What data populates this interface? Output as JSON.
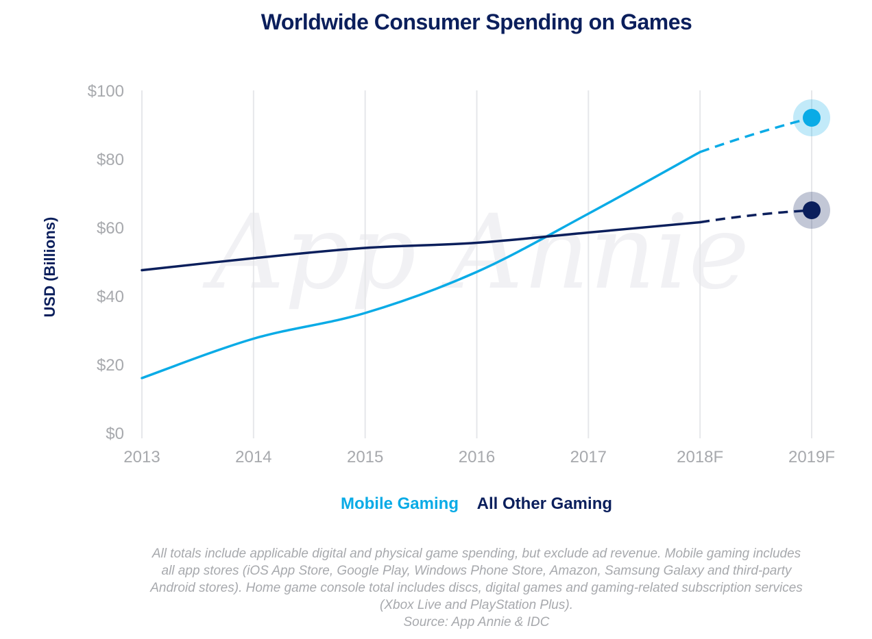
{
  "chart_data": {
    "type": "line",
    "title": "Worldwide Consumer Spending on Games",
    "ylabel": "USD (Billions)",
    "xlabel": "",
    "categories": [
      "2013",
      "2014",
      "2015",
      "2016",
      "2017",
      "2018F",
      "2019F"
    ],
    "ylim": [
      0,
      100
    ],
    "yticks": [
      0,
      20,
      40,
      60,
      80,
      100
    ],
    "ytick_labels": [
      "$0",
      "$20",
      "$40",
      "$60",
      "$80",
      "$100"
    ],
    "grid": "vertical",
    "legend_position": "bottom-center",
    "forecast_from": "2018F",
    "series": [
      {
        "name": "Mobile Gaming",
        "color": "#0aabe6",
        "values": [
          16,
          27.5,
          35,
          47,
          64,
          82,
          92
        ]
      },
      {
        "name": "All Other Gaming",
        "color": "#0b1f5c",
        "values": [
          47.5,
          51,
          54,
          55.5,
          58.5,
          61.5,
          65
        ]
      }
    ],
    "watermark": "App Annie"
  },
  "footnote": {
    "lines": [
      "All totals include applicable digital and physical game spending, but exclude ad revenue. Mobile gaming includes",
      "all app stores (iOS App Store, Google Play, Windows Phone Store, Amazon, Samsung Galaxy and third-party",
      "Android stores). Home game console total includes discs, digital games and gaming-related subscription services",
      "(Xbox Live and PlayStation Plus).",
      "Source: App Annie & IDC"
    ]
  }
}
